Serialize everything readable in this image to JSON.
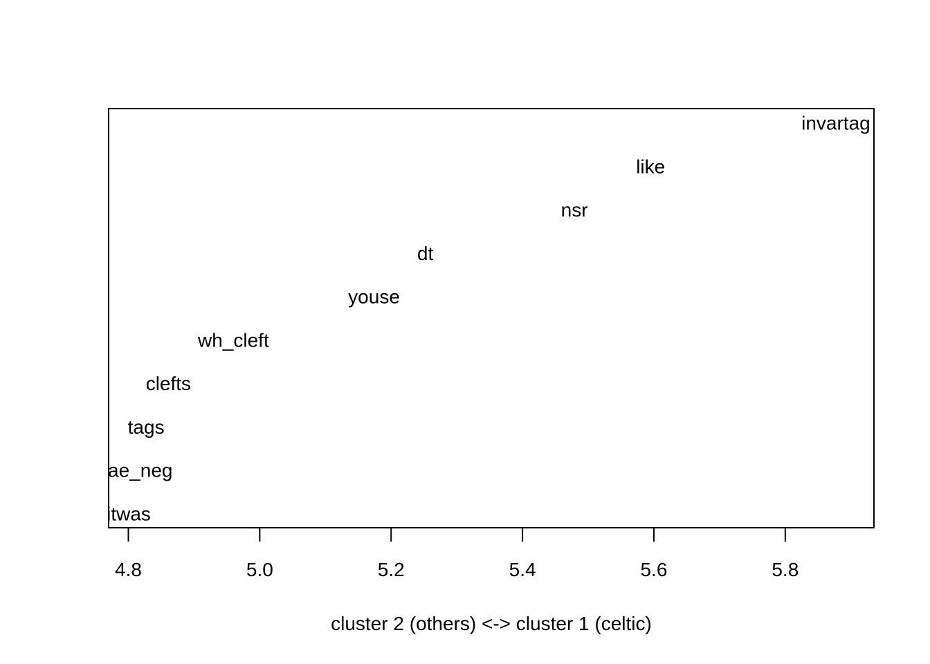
{
  "chart_data": {
    "type": "scatter",
    "title": "",
    "xlabel": "cluster 2 (others) <-> cluster 1 (celtic)",
    "ylabel": "",
    "xlim": [
      4.77,
      5.935
    ],
    "x_ticks": [
      "4.8",
      "5.0",
      "5.2",
      "5.4",
      "5.6",
      "5.8"
    ],
    "x_tick_values": [
      4.8,
      5.0,
      5.2,
      5.4,
      5.6,
      5.8
    ],
    "y_axis_shown": false,
    "grid": false,
    "legend": "none",
    "points": [
      {
        "label": "soitwas",
        "x": 4.785,
        "rank": 1
      },
      {
        "label": "nae_neg",
        "x": 4.81,
        "rank": 2
      },
      {
        "label": "tags",
        "x": 4.827,
        "rank": 3
      },
      {
        "label": "clefts",
        "x": 4.861,
        "rank": 4
      },
      {
        "label": "wh_cleft",
        "x": 4.96,
        "rank": 5
      },
      {
        "label": "youse",
        "x": 5.174,
        "rank": 6
      },
      {
        "label": "dt",
        "x": 5.252,
        "rank": 7
      },
      {
        "label": "nsr",
        "x": 5.479,
        "rank": 8
      },
      {
        "label": "like",
        "x": 5.595,
        "rank": 9
      },
      {
        "label": "invartag",
        "x": 5.877,
        "rank": 10
      }
    ]
  }
}
